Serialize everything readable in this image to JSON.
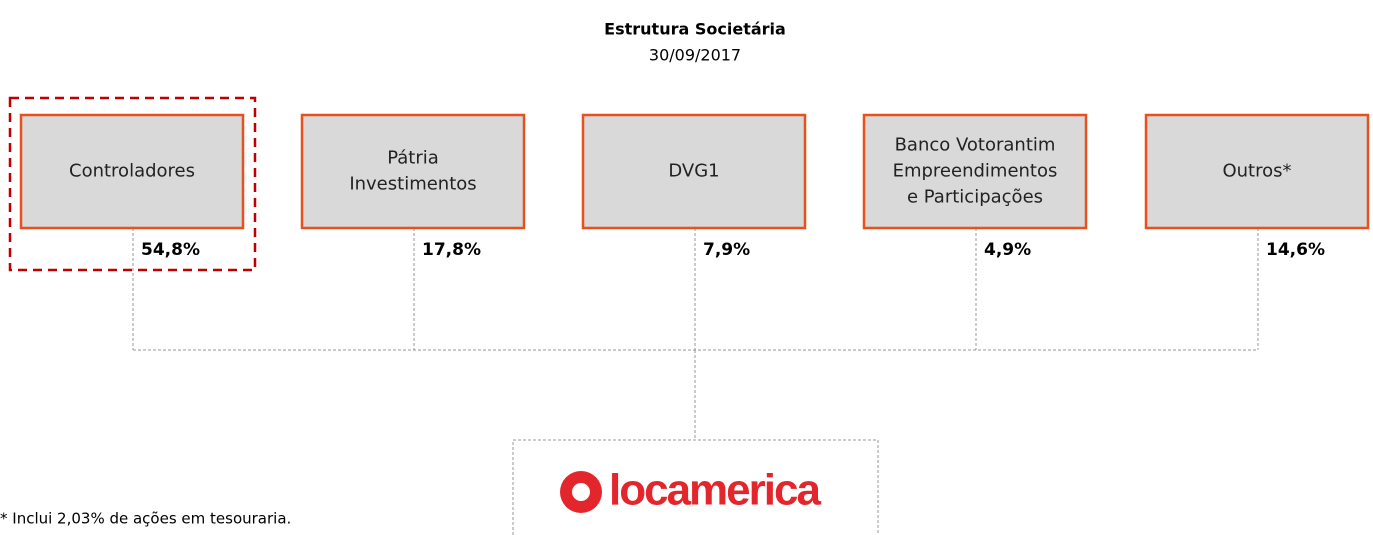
{
  "header": {
    "title": "Estrutura Societária",
    "date": "30/09/2017"
  },
  "nodes": [
    {
      "label": [
        "Controladores"
      ],
      "share": "54,8%"
    },
    {
      "label": [
        "Pátria",
        "Investimentos"
      ],
      "share": "17,8%"
    },
    {
      "label": [
        "DVG1"
      ],
      "share": "7,9%"
    },
    {
      "label": [
        "Banco Votorantim",
        "Empreendimentos",
        "e Participações"
      ],
      "share": "4,9%"
    },
    {
      "label": [
        "Outros*"
      ],
      "share": "14,6%"
    }
  ],
  "company": {
    "logo_text": "locamerica"
  },
  "footnote": "* Inclui 2,03% de ações em tesouraria."
}
